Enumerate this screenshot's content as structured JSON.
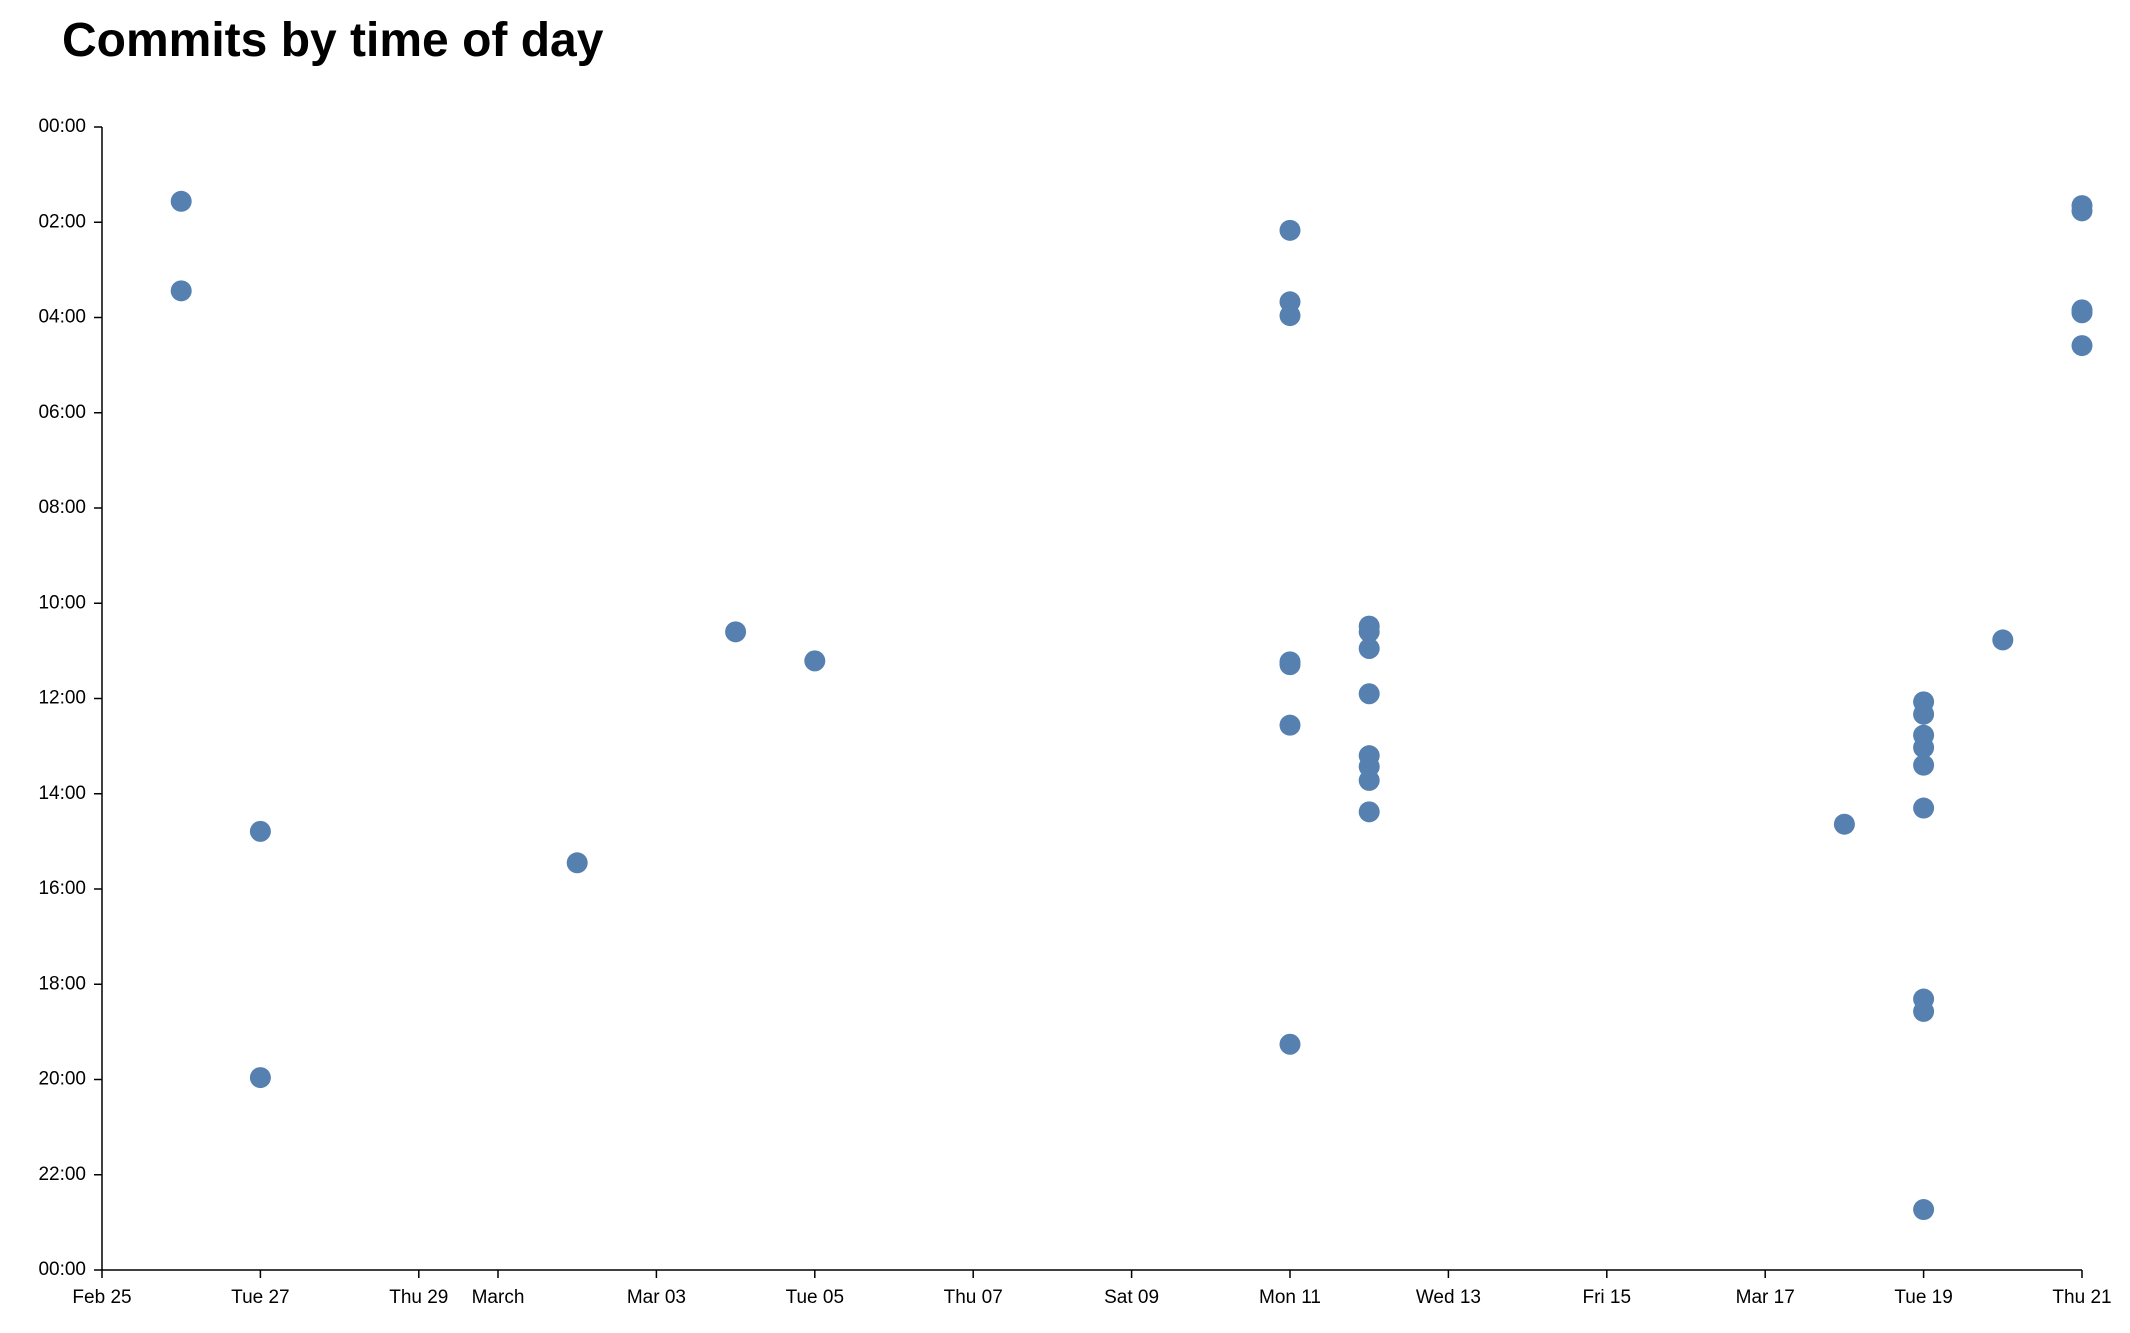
{
  "chart_data": {
    "type": "scatter",
    "title": "Commits by time of day",
    "color": "#5580b0",
    "xlim": [
      "Feb 25",
      "Mar 21"
    ],
    "xticks": [
      {
        "value": "Feb 25",
        "label": "Feb 25"
      },
      {
        "value": "Feb 27",
        "label": "Tue 27"
      },
      {
        "value": "Feb 29",
        "label": "Thu 29"
      },
      {
        "value": "Mar 1",
        "label": "March"
      },
      {
        "value": "Mar 3",
        "label": "Mar 03"
      },
      {
        "value": "Mar 5",
        "label": "Tue 05"
      },
      {
        "value": "Mar 7",
        "label": "Thu 07"
      },
      {
        "value": "Mar 9",
        "label": "Sat 09"
      },
      {
        "value": "Mar 11",
        "label": "Mon 11"
      },
      {
        "value": "Mar 13",
        "label": "Wed 13"
      },
      {
        "value": "Mar 15",
        "label": "Fri 15"
      },
      {
        "value": "Mar 17",
        "label": "Mar 17"
      },
      {
        "value": "Mar 19",
        "label": "Tue 19"
      },
      {
        "value": "Mar 21",
        "label": "Thu 21"
      }
    ],
    "ylim": [
      0,
      24
    ],
    "y_inverted": true,
    "yticks": [
      {
        "value": 0,
        "label": "00:00"
      },
      {
        "value": 2,
        "label": "02:00"
      },
      {
        "value": 4,
        "label": "04:00"
      },
      {
        "value": 6,
        "label": "06:00"
      },
      {
        "value": 8,
        "label": "08:00"
      },
      {
        "value": 10,
        "label": "10:00"
      },
      {
        "value": 12,
        "label": "12:00"
      },
      {
        "value": 14,
        "label": "14:00"
      },
      {
        "value": 16,
        "label": "16:00"
      },
      {
        "value": 18,
        "label": "18:00"
      },
      {
        "value": 20,
        "label": "20:00"
      },
      {
        "value": 22,
        "label": "22:00"
      },
      {
        "value": 24,
        "label": "00:00"
      }
    ],
    "x": [
      "Feb 26",
      "Feb 26",
      "Feb 27",
      "Feb 27",
      "Mar 2",
      "Mar 4",
      "Mar 5",
      "Mar 11",
      "Mar 11",
      "Mar 11",
      "Mar 11",
      "Mar 11",
      "Mar 11",
      "Mar 11",
      "Mar 12",
      "Mar 12",
      "Mar 12",
      "Mar 12",
      "Mar 12",
      "Mar 12",
      "Mar 12",
      "Mar 12",
      "Mar 18",
      "Mar 19",
      "Mar 19",
      "Mar 19",
      "Mar 19",
      "Mar 19",
      "Mar 19",
      "Mar 19",
      "Mar 19",
      "Mar 19",
      "Mar 20",
      "Mar 21",
      "Mar 21",
      "Mar 21",
      "Mar 21",
      "Mar 21"
    ],
    "values": [
      1.56,
      3.44,
      14.79,
      19.96,
      15.45,
      10.6,
      11.21,
      2.17,
      3.67,
      3.96,
      11.23,
      11.29,
      12.56,
      19.26,
      10.48,
      10.6,
      10.95,
      11.9,
      13.2,
      13.43,
      13.72,
      14.38,
      14.64,
      12.07,
      12.33,
      12.77,
      13.03,
      13.4,
      14.3,
      18.31,
      18.57,
      22.73,
      10.77,
      1.65,
      1.76,
      3.84,
      3.9,
      4.59
    ]
  }
}
